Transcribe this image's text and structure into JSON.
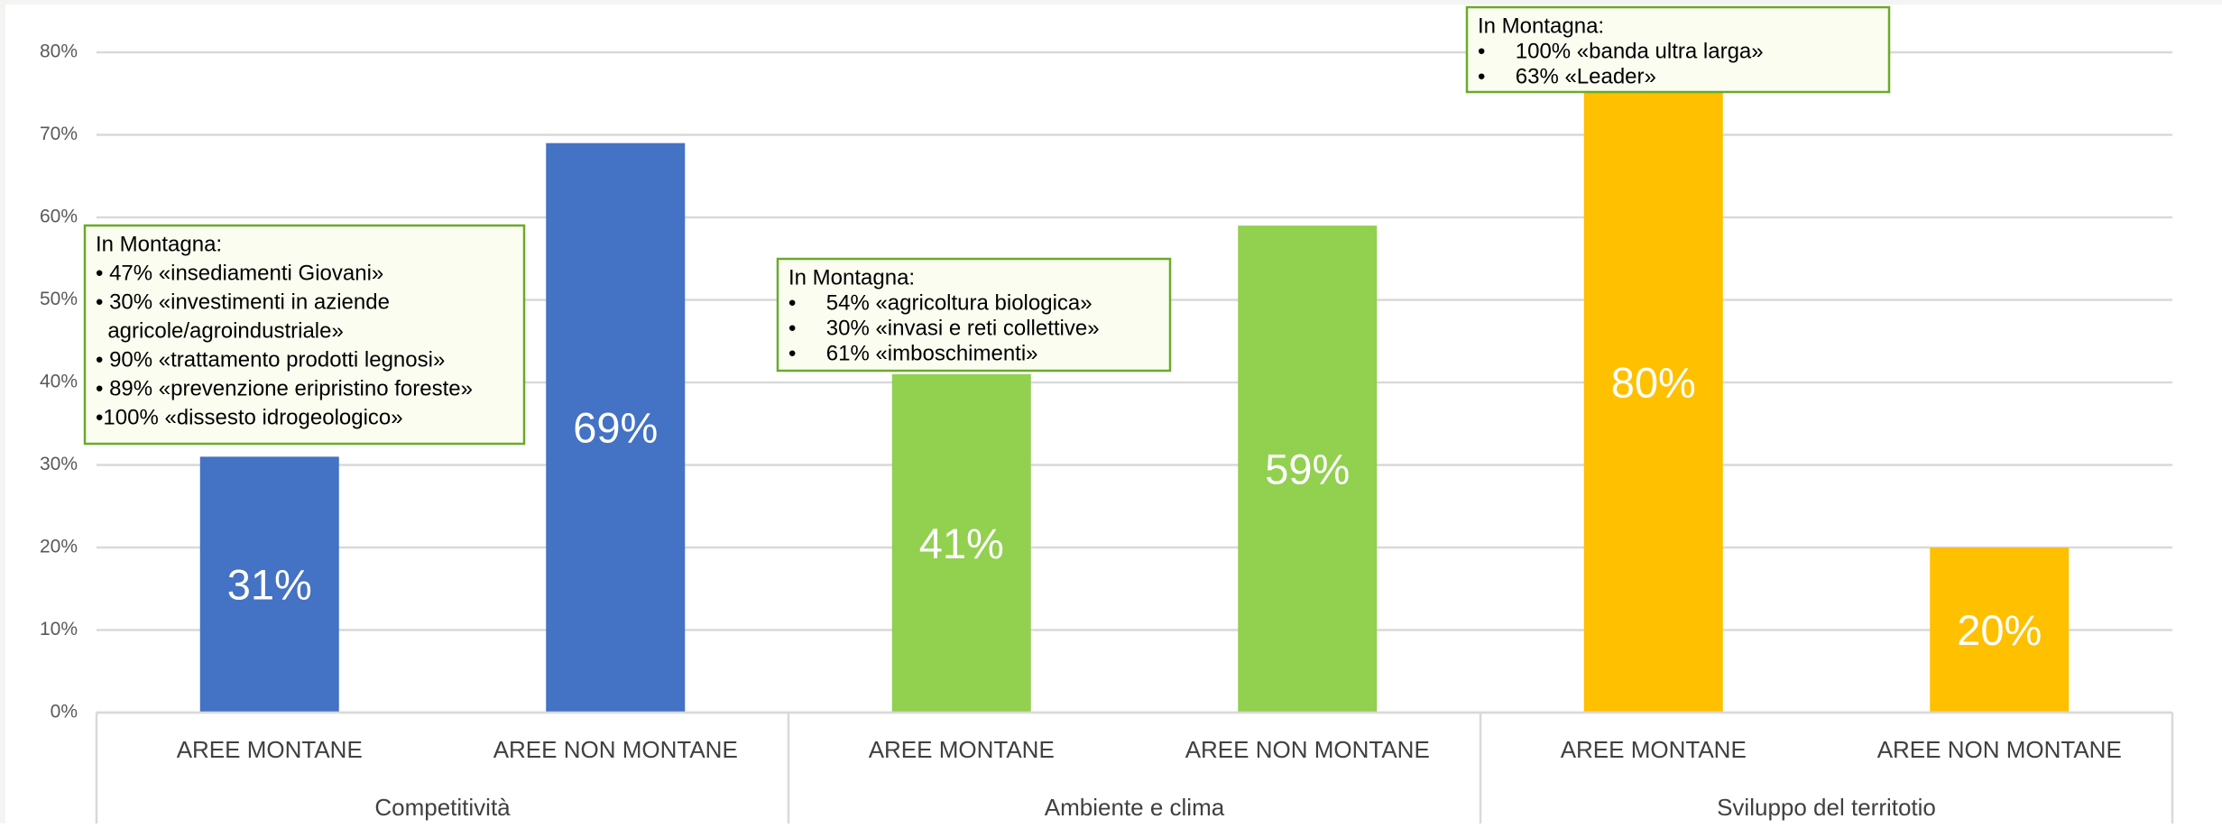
{
  "chart_data": {
    "type": "bar",
    "categories": [
      "AREE MONTANE",
      "AREE NON MONTANE",
      "AREE MONTANE",
      "AREE NON MONTANE",
      "AREE MONTANE",
      "AREE NON MONTANE"
    ],
    "groups": [
      "Competitività",
      "Ambiente e clima",
      "Sviluppo del territotio"
    ],
    "values": [
      31,
      69,
      41,
      59,
      80,
      20
    ],
    "value_labels": [
      "31%",
      "69%",
      "41%",
      "59%",
      "80%",
      "20%"
    ],
    "colors": [
      "#4472c4",
      "#4472c4",
      "#92d050",
      "#92d050",
      "#ffc000",
      "#ffc000"
    ],
    "ylim": [
      0,
      80
    ],
    "yticks": [
      {
        "value": 0,
        "label": "0%"
      },
      {
        "value": 10,
        "label": "10%"
      },
      {
        "value": 20,
        "label": "20%"
      },
      {
        "value": 30,
        "label": "30%"
      },
      {
        "value": 40,
        "label": "40%"
      },
      {
        "value": 50,
        "label": "50%"
      },
      {
        "value": 60,
        "label": "60%"
      },
      {
        "value": 70,
        "label": "70%"
      },
      {
        "value": 80,
        "label": "80%"
      }
    ],
    "grid": true,
    "annotations": [
      {
        "lines": [
          "In Montagna:",
          "• 47% «insediamenti Giovani»",
          "• 30% «investimenti in aziende",
          "  agricole/agroindustriale»",
          "• 90% «trattamento prodotti legnosi»",
          "• 89% «prevenzione eripristino foreste»",
          "•100% «dissesto idrogeologico»"
        ]
      },
      {
        "lines": [
          "In Montagna:",
          "•     54% «agricoltura biologica»",
          "•     30% «invasi e reti collettive»",
          "•     61% «imboschimenti»"
        ]
      },
      {
        "lines": [
          "In Montagna:",
          "•     100% «banda ultra larga»",
          "•     63% «Leader»"
        ]
      }
    ]
  }
}
